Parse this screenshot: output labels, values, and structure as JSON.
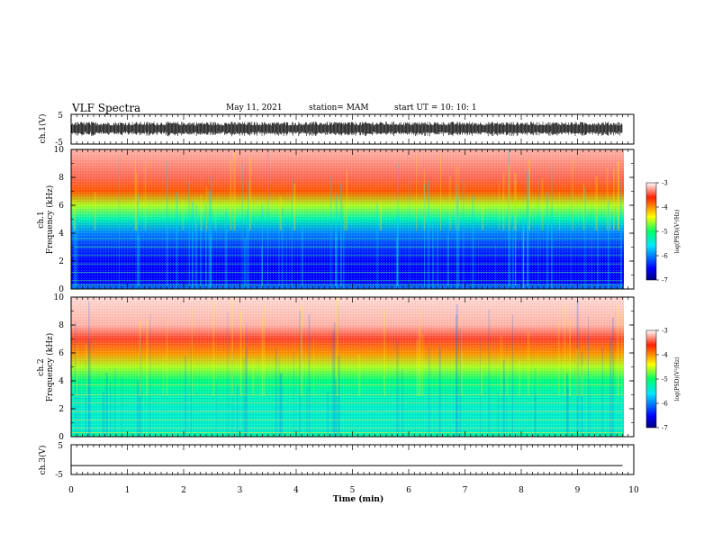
{
  "header": {
    "title": "VLF Spectra",
    "date": "May 11, 2021",
    "station": "station= MAM",
    "start": "start  UT =   10: 10: 1"
  },
  "chart_data": [
    {
      "type": "line",
      "panel": "ch1-waveform",
      "ylabel": "ch.1(V)",
      "ylim": [
        -5,
        5
      ],
      "yticks": [
        "5",
        "-5"
      ],
      "trace_color": "#000000",
      "trace_range": [
        -2.5,
        2.5
      ]
    },
    {
      "type": "heatmap",
      "panel": "ch1-spectrogram",
      "ylabel": "ch.1\nFrequency  (kHz)",
      "ylim": [
        0,
        10
      ],
      "yticks": [
        "0",
        "2",
        "4",
        "6",
        "8",
        "10"
      ],
      "colorbar": {
        "label": "log(PSD)(V²/Hz)",
        "range": [
          -7,
          -3
        ],
        "ticks": [
          "-3",
          "-4",
          "-5",
          "-6",
          "-7"
        ]
      },
      "profile_freq_khz": [
        0,
        0.5,
        2,
        3,
        4,
        5,
        6,
        7,
        8,
        10
      ],
      "profile_logpsd": [
        -6.0,
        -6.5,
        -6.5,
        -6.3,
        -6.0,
        -5.3,
        -4.6,
        -3.8,
        -3.4,
        -3.2
      ]
    },
    {
      "type": "heatmap",
      "panel": "ch2-spectrogram",
      "ylabel": "ch.2\nFrequency  (kHz)",
      "ylim": [
        0,
        10
      ],
      "yticks": [
        "0",
        "2",
        "4",
        "6",
        "8",
        "10"
      ],
      "colorbar": {
        "label": "log(PSD)(V²/Hz)",
        "range": [
          -7,
          -3
        ],
        "ticks": [
          "-3",
          "-4",
          "-5",
          "-6",
          "-7"
        ]
      },
      "profile_freq_khz": [
        0,
        0.5,
        2,
        3,
        4,
        5,
        6,
        7,
        8,
        10
      ],
      "profile_logpsd": [
        -5.2,
        -5.4,
        -5.4,
        -5.3,
        -5.1,
        -4.6,
        -4.0,
        -3.5,
        -3.2,
        -3.1
      ]
    },
    {
      "type": "line",
      "panel": "ch3-waveform",
      "ylabel": "ch.3(V)",
      "ylim": [
        -5,
        5
      ],
      "yticks": [
        "5",
        "-5"
      ],
      "trace_color": "#000000",
      "trace_value": -2
    }
  ],
  "xaxis": {
    "label": "Time  (min)",
    "range": [
      0,
      10
    ],
    "ticks": [
      "0",
      "1",
      "2",
      "3",
      "4",
      "5",
      "6",
      "7",
      "8",
      "9",
      "10"
    ],
    "data_end": 9.8
  }
}
